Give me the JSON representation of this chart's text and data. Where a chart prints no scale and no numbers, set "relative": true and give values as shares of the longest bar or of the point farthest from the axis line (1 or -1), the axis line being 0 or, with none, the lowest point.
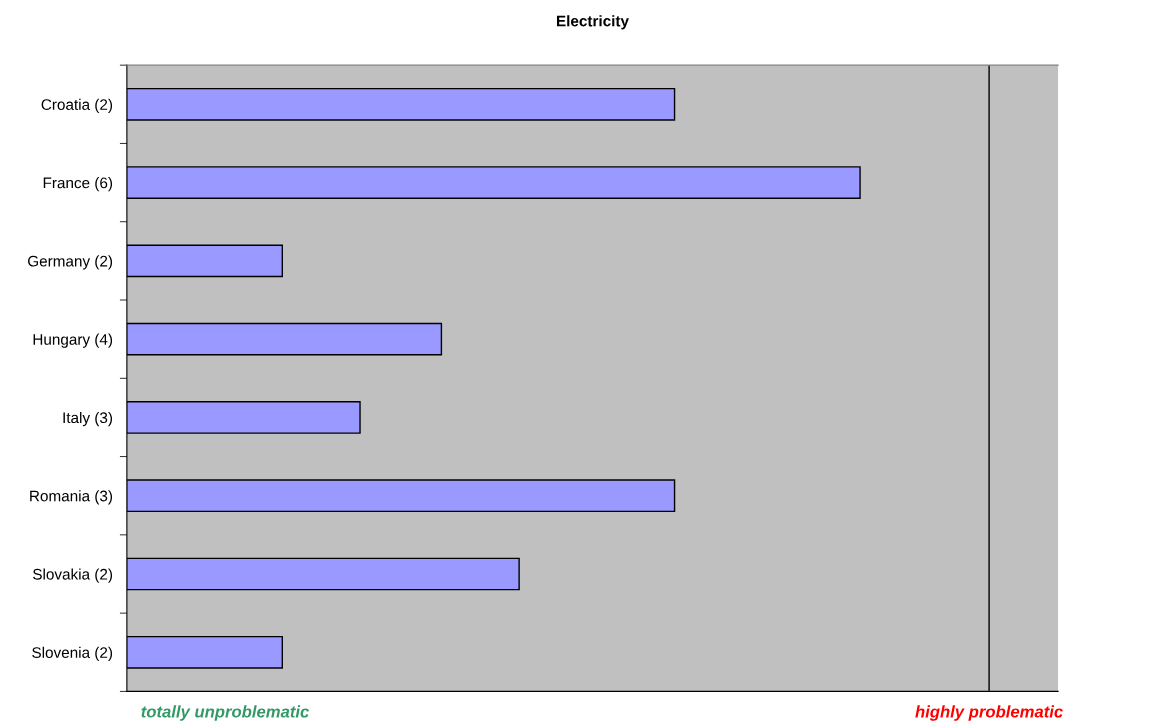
{
  "chart_data": {
    "type": "bar",
    "orientation": "horizontal",
    "title": "Electricity",
    "categories": [
      "Croatia (2)",
      "France (6)",
      "Germany (2)",
      "Hungary (4)",
      "Italy (3)",
      "Romania (3)",
      "Slovakia (2)",
      "Slovenia (2)"
    ],
    "values": [
      0.747,
      1,
      0.212,
      0.429,
      0.318,
      0.747,
      0.535,
      0.212
    ],
    "color": "#9999ff",
    "relative": true,
    "ref_lines": [
      {
        "axis": "x",
        "value": 1.176,
        "label": "highly problematic",
        "color": "#000000"
      }
    ],
    "annotations": [
      "totally unproblematic"
    ]
  }
}
